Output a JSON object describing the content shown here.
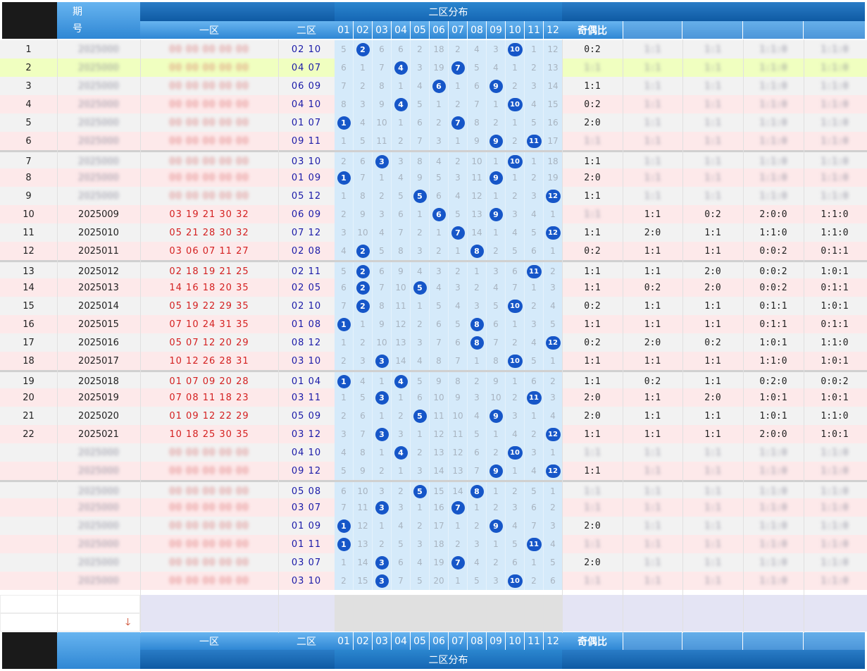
{
  "header": {
    "period_label": "期号",
    "zone1_label": "一区",
    "zone2_label": "二区",
    "zone2_dist_label": "二区分布",
    "odd_even_label": "奇偶比",
    "columns": [
      "01",
      "02",
      "03",
      "04",
      "05",
      "06",
      "07",
      "08",
      "09",
      "10",
      "11",
      "12"
    ]
  },
  "footer": {
    "zone1_label": "一区",
    "zone2_label": "二区",
    "zone2_dist_label": "二区分布",
    "odd_even_label": "奇偶比",
    "columns": [
      "01",
      "02",
      "03",
      "04",
      "05",
      "06",
      "07",
      "08",
      "09",
      "10",
      "11",
      "12"
    ]
  },
  "rows": [
    {
      "idx": "1",
      "period": "",
      "front": "",
      "back": "02 10",
      "grid": [
        "5",
        "2",
        "6",
        "6",
        "2",
        "18",
        "2",
        "4",
        "3",
        "10",
        "1",
        "12"
      ],
      "hits": [
        2,
        10
      ],
      "r": [
        "0:2",
        "",
        "",
        "",
        ""
      ]
    },
    {
      "idx": "2",
      "period": "",
      "front": "",
      "back": "04 07",
      "grid": [
        "6",
        "1",
        "7",
        "4",
        "3",
        "19",
        "7",
        "5",
        "4",
        "1",
        "2",
        "13"
      ],
      "hits": [
        4,
        7
      ],
      "r": [
        "",
        "",
        "",
        "",
        ""
      ]
    },
    {
      "idx": "3",
      "period": "",
      "front": "",
      "back": "06 09",
      "grid": [
        "7",
        "2",
        "8",
        "1",
        "4",
        "6",
        "1",
        "6",
        "9",
        "2",
        "3",
        "14"
      ],
      "hits": [
        6,
        9
      ],
      "r": [
        "1:1",
        "",
        "",
        "",
        ""
      ]
    },
    {
      "idx": "4",
      "period": "",
      "front": "",
      "back": "04 10",
      "grid": [
        "8",
        "3",
        "9",
        "4",
        "5",
        "1",
        "2",
        "7",
        "1",
        "10",
        "4",
        "15"
      ],
      "hits": [
        4,
        10
      ],
      "r": [
        "0:2",
        "",
        "",
        "",
        ""
      ]
    },
    {
      "idx": "5",
      "period": "",
      "front": "",
      "back": "01 07",
      "grid": [
        "1",
        "4",
        "10",
        "1",
        "6",
        "2",
        "7",
        "8",
        "2",
        "1",
        "5",
        "16"
      ],
      "hits": [
        1,
        7
      ],
      "r": [
        "2:0",
        "",
        "",
        "",
        ""
      ]
    },
    {
      "idx": "6",
      "period": "",
      "front": "",
      "back": "09 11",
      "grid": [
        "1",
        "5",
        "11",
        "2",
        "7",
        "3",
        "1",
        "9",
        "9",
        "2",
        "11",
        "17"
      ],
      "hits": [
        9,
        11
      ],
      "r": [
        "",
        "",
        "",
        "",
        ""
      ]
    },
    {
      "idx": "7",
      "period": "",
      "front": "",
      "back": "03 10",
      "grid": [
        "2",
        "6",
        "3",
        "3",
        "8",
        "4",
        "2",
        "10",
        "1",
        "10",
        "1",
        "18"
      ],
      "hits": [
        3,
        10
      ],
      "r": [
        "1:1",
        "",
        "",
        "",
        ""
      ]
    },
    {
      "idx": "8",
      "period": "",
      "front": "",
      "back": "01 09",
      "grid": [
        "1",
        "7",
        "1",
        "4",
        "9",
        "5",
        "3",
        "11",
        "9",
        "1",
        "2",
        "19"
      ],
      "hits": [
        1,
        9
      ],
      "r": [
        "2:0",
        "",
        "",
        "",
        ""
      ]
    },
    {
      "idx": "9",
      "period": "",
      "front": "",
      "back": "05 12",
      "grid": [
        "1",
        "8",
        "2",
        "5",
        "5",
        "6",
        "4",
        "12",
        "1",
        "2",
        "3",
        "12"
      ],
      "hits": [
        5,
        12
      ],
      "r": [
        "1:1",
        "",
        "",
        "",
        ""
      ]
    },
    {
      "idx": "10",
      "period": "2025009",
      "front": "03 19 21 30 32",
      "back": "06 09",
      "grid": [
        "2",
        "9",
        "3",
        "6",
        "1",
        "6",
        "5",
        "13",
        "9",
        "3",
        "4",
        "1"
      ],
      "hits": [
        6,
        9
      ],
      "r": [
        "",
        "1:1",
        "0:2",
        "2:0:0",
        "1:1:0"
      ]
    },
    {
      "idx": "11",
      "period": "2025010",
      "front": "05 21 28 30 32",
      "back": "07 12",
      "grid": [
        "3",
        "10",
        "4",
        "7",
        "2",
        "1",
        "7",
        "14",
        "1",
        "4",
        "5",
        "12"
      ],
      "hits": [
        7,
        12
      ],
      "r": [
        "1:1",
        "2:0",
        "1:1",
        "1:1:0",
        "1:1:0"
      ]
    },
    {
      "idx": "12",
      "period": "2025011",
      "front": "03 06 07 11 27",
      "back": "02 08",
      "grid": [
        "4",
        "2",
        "5",
        "8",
        "3",
        "2",
        "1",
        "8",
        "2",
        "5",
        "6",
        "1"
      ],
      "hits": [
        2,
        8
      ],
      "r": [
        "0:2",
        "1:1",
        "1:1",
        "0:0:2",
        "0:1:1"
      ]
    },
    {
      "idx": "13",
      "period": "2025012",
      "front": "02 18 19 21 25",
      "back": "02 11",
      "grid": [
        "5",
        "2",
        "6",
        "9",
        "4",
        "3",
        "2",
        "1",
        "3",
        "6",
        "11",
        "2"
      ],
      "hits": [
        2,
        11
      ],
      "r": [
        "1:1",
        "1:1",
        "2:0",
        "0:0:2",
        "1:0:1"
      ]
    },
    {
      "idx": "14",
      "period": "2025013",
      "front": "14 16 18 20 35",
      "back": "02 05",
      "grid": [
        "6",
        "2",
        "7",
        "10",
        "5",
        "4",
        "3",
        "2",
        "4",
        "7",
        "1",
        "3"
      ],
      "hits": [
        2,
        5
      ],
      "r": [
        "1:1",
        "0:2",
        "2:0",
        "0:0:2",
        "0:1:1"
      ]
    },
    {
      "idx": "15",
      "period": "2025014",
      "front": "05 19 22 29 35",
      "back": "02 10",
      "grid": [
        "7",
        "2",
        "8",
        "11",
        "1",
        "5",
        "4",
        "3",
        "5",
        "10",
        "2",
        "4"
      ],
      "hits": [
        2,
        10
      ],
      "r": [
        "0:2",
        "1:1",
        "1:1",
        "0:1:1",
        "1:0:1"
      ]
    },
    {
      "idx": "16",
      "period": "2025015",
      "front": "07 10 24 31 35",
      "back": "01 08",
      "grid": [
        "1",
        "1",
        "9",
        "12",
        "2",
        "6",
        "5",
        "8",
        "6",
        "1",
        "3",
        "5"
      ],
      "hits": [
        1,
        8
      ],
      "r": [
        "1:1",
        "1:1",
        "1:1",
        "0:1:1",
        "0:1:1"
      ]
    },
    {
      "idx": "17",
      "period": "2025016",
      "front": "05 07 12 20 29",
      "back": "08 12",
      "grid": [
        "1",
        "2",
        "10",
        "13",
        "3",
        "7",
        "6",
        "8",
        "7",
        "2",
        "4",
        "12"
      ],
      "hits": [
        8,
        12
      ],
      "r": [
        "0:2",
        "2:0",
        "0:2",
        "1:0:1",
        "1:1:0"
      ]
    },
    {
      "idx": "18",
      "period": "2025017",
      "front": "10 12 26 28 31",
      "back": "03 10",
      "grid": [
        "2",
        "3",
        "3",
        "14",
        "4",
        "8",
        "7",
        "1",
        "8",
        "10",
        "5",
        "1"
      ],
      "hits": [
        3,
        10
      ],
      "r": [
        "1:1",
        "1:1",
        "1:1",
        "1:1:0",
        "1:0:1"
      ]
    },
    {
      "idx": "19",
      "period": "2025018",
      "front": "01 07 09 20 28",
      "back": "01 04",
      "grid": [
        "1",
        "4",
        "1",
        "4",
        "5",
        "9",
        "8",
        "2",
        "9",
        "1",
        "6",
        "2"
      ],
      "hits": [
        1,
        4
      ],
      "r": [
        "1:1",
        "0:2",
        "1:1",
        "0:2:0",
        "0:0:2"
      ]
    },
    {
      "idx": "20",
      "period": "2025019",
      "front": "07 08 11 18 23",
      "back": "03 11",
      "grid": [
        "1",
        "5",
        "3",
        "1",
        "6",
        "10",
        "9",
        "3",
        "10",
        "2",
        "11",
        "3"
      ],
      "hits": [
        3,
        11
      ],
      "r": [
        "2:0",
        "1:1",
        "2:0",
        "1:0:1",
        "1:0:1"
      ]
    },
    {
      "idx": "21",
      "period": "2025020",
      "front": "01 09 12 22 29",
      "back": "05 09",
      "grid": [
        "2",
        "6",
        "1",
        "2",
        "5",
        "11",
        "10",
        "4",
        "9",
        "3",
        "1",
        "4"
      ],
      "hits": [
        5,
        9
      ],
      "r": [
        "2:0",
        "1:1",
        "1:1",
        "1:0:1",
        "1:1:0"
      ]
    },
    {
      "idx": "22",
      "period": "2025021",
      "front": "10 18 25 30 35",
      "back": "03 12",
      "grid": [
        "3",
        "7",
        "3",
        "3",
        "1",
        "12",
        "11",
        "5",
        "1",
        "4",
        "2",
        "12"
      ],
      "hits": [
        3,
        12
      ],
      "r": [
        "1:1",
        "1:1",
        "1:1",
        "2:0:0",
        "1:0:1"
      ]
    },
    {
      "idx": "",
      "period": "",
      "front": "",
      "back": "04 10",
      "grid": [
        "4",
        "8",
        "1",
        "4",
        "2",
        "13",
        "12",
        "6",
        "2",
        "10",
        "3",
        "1"
      ],
      "hits": [
        4,
        10
      ],
      "r": [
        "",
        "",
        "",
        "",
        ""
      ]
    },
    {
      "idx": "",
      "period": "",
      "front": "",
      "back": "09 12",
      "grid": [
        "5",
        "9",
        "2",
        "1",
        "3",
        "14",
        "13",
        "7",
        "9",
        "1",
        "4",
        "12"
      ],
      "hits": [
        9,
        12
      ],
      "r": [
        "1:1",
        "",
        "",
        "",
        ""
      ]
    },
    {
      "idx": "",
      "period": "",
      "front": "",
      "back": "05 08",
      "grid": [
        "6",
        "10",
        "3",
        "2",
        "5",
        "15",
        "14",
        "8",
        "1",
        "2",
        "5",
        "1"
      ],
      "hits": [
        5,
        8
      ],
      "r": [
        "",
        "",
        "",
        "",
        ""
      ]
    },
    {
      "idx": "",
      "period": "",
      "front": "",
      "back": "03 07",
      "grid": [
        "7",
        "11",
        "3",
        "3",
        "1",
        "16",
        "7",
        "1",
        "2",
        "3",
        "6",
        "2"
      ],
      "hits": [
        3,
        7
      ],
      "r": [
        "",
        "",
        "",
        "",
        ""
      ]
    },
    {
      "idx": "",
      "period": "",
      "front": "",
      "back": "01 09",
      "grid": [
        "1",
        "12",
        "1",
        "4",
        "2",
        "17",
        "1",
        "2",
        "9",
        "4",
        "7",
        "3"
      ],
      "hits": [
        1,
        9
      ],
      "r": [
        "2:0",
        "",
        "",
        "",
        ""
      ]
    },
    {
      "idx": "",
      "period": "",
      "front": "",
      "back": "01 11",
      "grid": [
        "1",
        "13",
        "2",
        "5",
        "3",
        "18",
        "2",
        "3",
        "1",
        "5",
        "11",
        "4"
      ],
      "hits": [
        1,
        11
      ],
      "r": [
        "",
        "",
        "",
        "",
        ""
      ]
    },
    {
      "idx": "",
      "period": "",
      "front": "",
      "back": "03 07",
      "grid": [
        "1",
        "14",
        "3",
        "6",
        "4",
        "19",
        "7",
        "4",
        "2",
        "6",
        "1",
        "5"
      ],
      "hits": [
        3,
        7
      ],
      "r": [
        "2:0",
        "",
        "",
        "",
        ""
      ]
    },
    {
      "idx": "",
      "period": "",
      "front": "",
      "back": "03 10",
      "grid": [
        "2",
        "15",
        "3",
        "7",
        "5",
        "20",
        "1",
        "5",
        "3",
        "10",
        "2",
        "6"
      ],
      "hits": [
        3,
        10
      ],
      "r": [
        "",
        "",
        "",
        "",
        ""
      ]
    }
  ],
  "blurred_rows": [
    1,
    2,
    3,
    4,
    5,
    6,
    7,
    8,
    9
  ],
  "blurred_tail_rows": [
    23,
    24,
    25,
    26,
    27,
    28,
    29,
    30
  ],
  "colors": {
    "ball": "#1656c8",
    "front": "#d42020",
    "back": "#1a1aa8",
    "grid_bg": "#d5eafa",
    "highlight": "#f0ffc0"
  }
}
